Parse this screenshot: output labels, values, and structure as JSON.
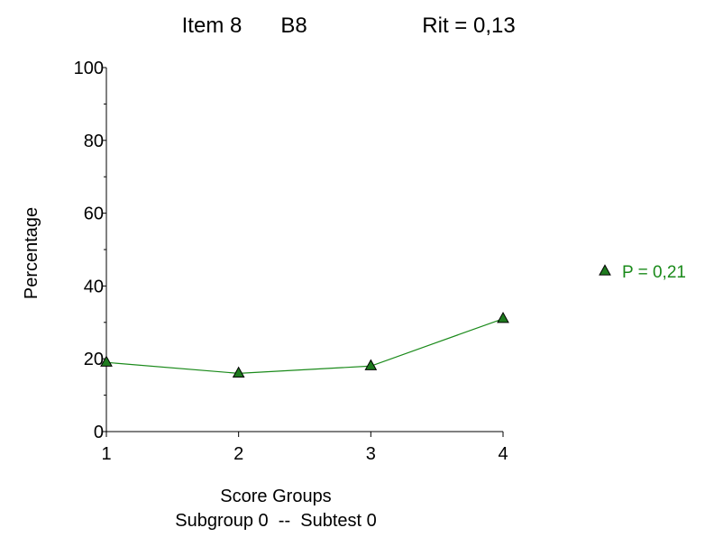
{
  "title": {
    "item": "Item 8",
    "code": "B8",
    "rit": "Rit = 0,13"
  },
  "chart_data": {
    "type": "line",
    "xlabel": "Score Groups",
    "subtitle": "Subgroup 0  --  Subtest 0",
    "ylabel": "Percentage",
    "xlim": [
      1,
      4
    ],
    "ylim": [
      0,
      100
    ],
    "x_ticks": [
      1,
      2,
      3,
      4
    ],
    "y_ticks": [
      0,
      20,
      40,
      60,
      80,
      100
    ],
    "y_minor_step": 10,
    "grid": false,
    "legend_position": "right",
    "series": [
      {
        "name": "P = 0,21",
        "marker": "triangle",
        "color": "#1a8a1a",
        "marker_fill": "#1e7a1e",
        "x": [
          1,
          2,
          3,
          4
        ],
        "values": [
          19,
          16,
          18,
          31
        ]
      }
    ]
  }
}
